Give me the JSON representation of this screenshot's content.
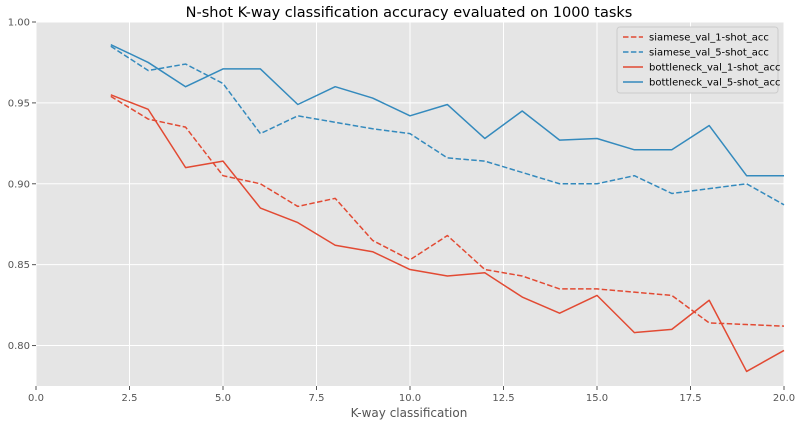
{
  "chart_data": {
    "type": "line",
    "title": "N-shot K-way classification accuracy evaluated on 1000 tasks",
    "xlabel": "K-way classification",
    "ylabel": "",
    "xlim": [
      0.0,
      20.0
    ],
    "ylim": [
      0.775,
      1.0
    ],
    "x_ticks": [
      "0.0",
      "2.5",
      "5.0",
      "7.5",
      "10.0",
      "12.5",
      "15.0",
      "17.5",
      "20.0"
    ],
    "y_ticks": [
      "0.80",
      "0.85",
      "0.90",
      "0.95",
      "1.00"
    ],
    "grid": true,
    "legend_position": "top-right",
    "x": [
      2,
      3,
      4,
      5,
      6,
      7,
      8,
      9,
      10,
      11,
      12,
      13,
      14,
      15,
      16,
      17,
      18,
      19,
      20
    ],
    "series": [
      {
        "name": "siamese_val_1-shot_acc",
        "color": "#E24A33",
        "dashed": true,
        "values": [
          0.954,
          0.94,
          0.935,
          0.905,
          0.9,
          0.886,
          0.891,
          0.865,
          0.853,
          0.868,
          0.847,
          0.843,
          0.835,
          0.835,
          0.833,
          0.831,
          0.814,
          0.813,
          0.812
        ]
      },
      {
        "name": "siamese_val_5-shot_acc",
        "color": "#348ABD",
        "dashed": true,
        "values": [
          0.985,
          0.97,
          0.974,
          0.962,
          0.931,
          0.942,
          0.938,
          0.934,
          0.931,
          0.916,
          0.914,
          0.907,
          0.9,
          0.9,
          0.905,
          0.894,
          0.897,
          0.9,
          0.887
        ]
      },
      {
        "name": "bottleneck_val_1-shot_acc",
        "color": "#E24A33",
        "dashed": false,
        "values": [
          0.955,
          0.946,
          0.91,
          0.914,
          0.885,
          0.876,
          0.862,
          0.858,
          0.847,
          0.843,
          0.845,
          0.83,
          0.82,
          0.831,
          0.808,
          0.81,
          0.828,
          0.784,
          0.797
        ]
      },
      {
        "name": "bottleneck_val_5-shot_acc",
        "color": "#348ABD",
        "dashed": false,
        "values": [
          0.986,
          0.975,
          0.96,
          0.971,
          0.971,
          0.949,
          0.96,
          0.953,
          0.942,
          0.949,
          0.928,
          0.945,
          0.927,
          0.928,
          0.921,
          0.921,
          0.936,
          0.905,
          0.905
        ]
      }
    ]
  }
}
